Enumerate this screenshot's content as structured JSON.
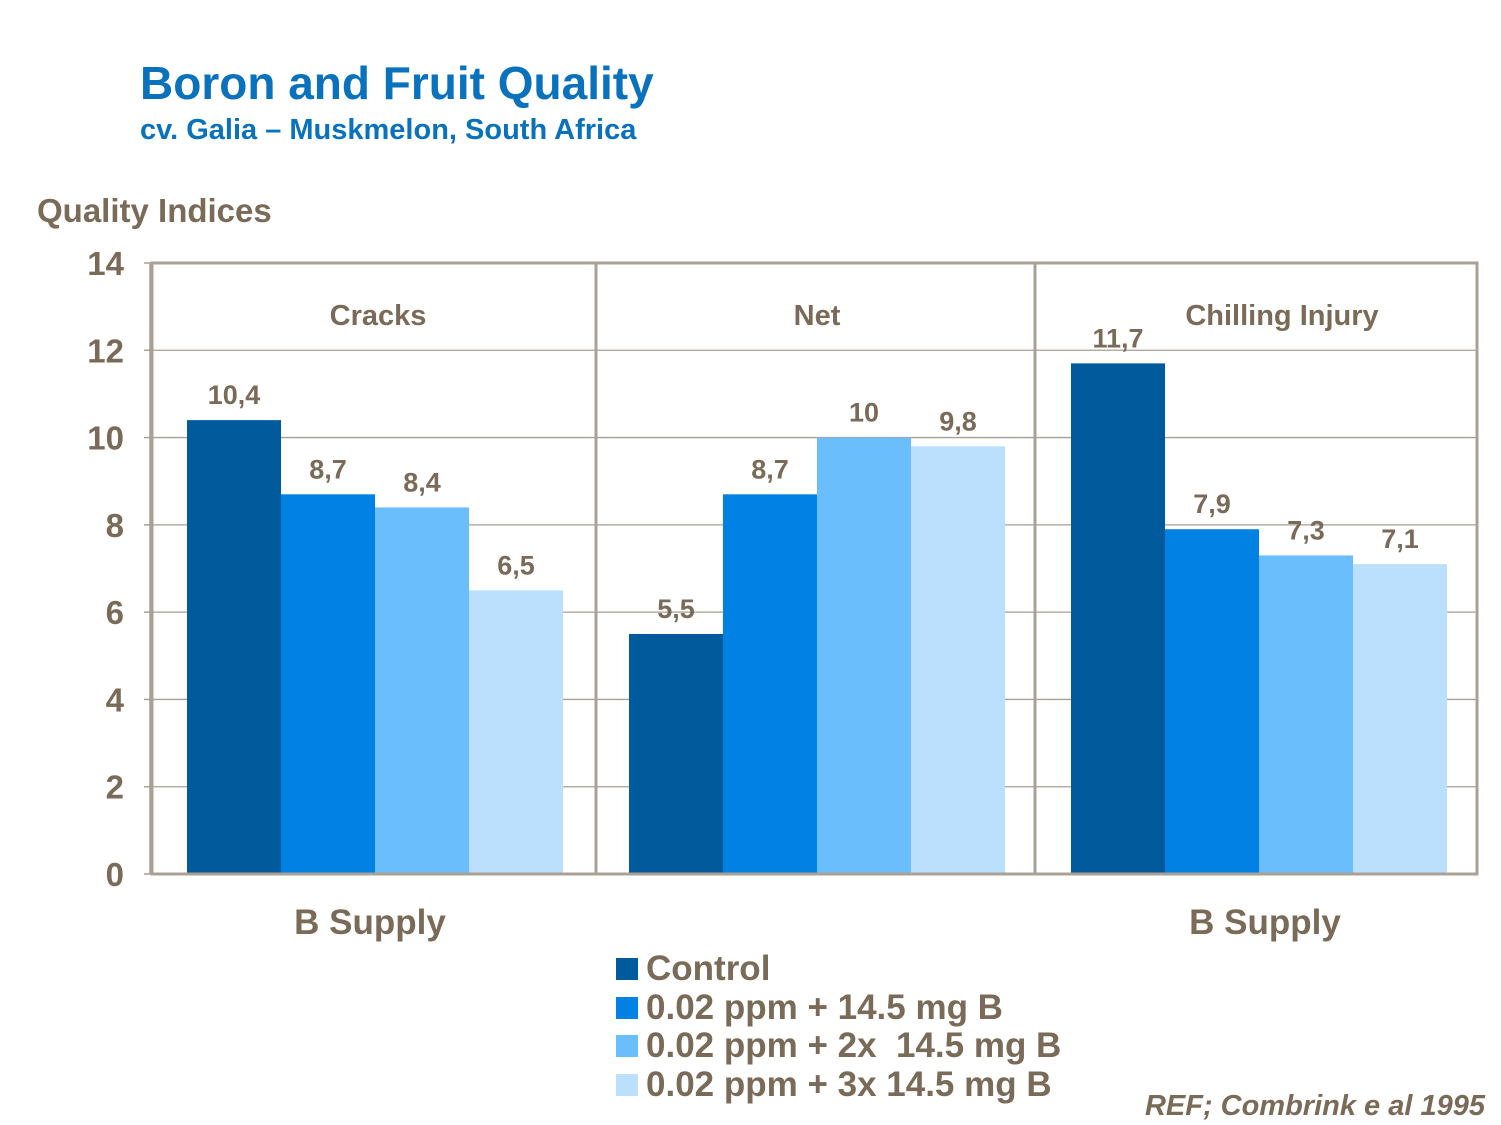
{
  "page": {
    "title": "Boron and Fruit Quality",
    "subtitle": "cv. Galia – Muskmelon, South Africa",
    "reference": "REF; Combrink e al 1995"
  },
  "colors": {
    "text": "#7a6a58",
    "title": "#0a72bd",
    "grid": "#a89e93",
    "frame": "#aaa095"
  },
  "chart_data": {
    "type": "bar",
    "ylabel": "Quality Indices",
    "ylim": [
      0,
      14
    ],
    "yticks": [
      0,
      2,
      4,
      6,
      8,
      10,
      12,
      14
    ],
    "grid": true,
    "categories": [
      "Cracks",
      "Net",
      "Chilling Injury"
    ],
    "x_axis_labels": [
      "B Supply",
      "B Supply"
    ],
    "legend_position": "bottom-center",
    "series": [
      {
        "name": "Control",
        "color": "#005a9c",
        "values": [
          10.4,
          5.5,
          11.7
        ],
        "labels": [
          "10,4",
          "5,5",
          "11,7"
        ]
      },
      {
        "name": "0.02 ppm + 14.5 mg B",
        "color": "#0081e3",
        "values": [
          8.7,
          8.7,
          7.9
        ],
        "labels": [
          "8,7",
          "8,7",
          "7,9"
        ]
      },
      {
        "name": "0.02 ppm + 2x  14.5 mg B",
        "color": "#6bbefc",
        "values": [
          8.4,
          10,
          7.3
        ],
        "labels": [
          "8,4",
          "10",
          "7,3"
        ]
      },
      {
        "name": "0.02 ppm + 3x 14.5 mg B",
        "color": "#bae0fd",
        "values": [
          6.5,
          9.8,
          7.1
        ],
        "labels": [
          "6,5",
          "9,8",
          "7,1"
        ]
      }
    ]
  }
}
